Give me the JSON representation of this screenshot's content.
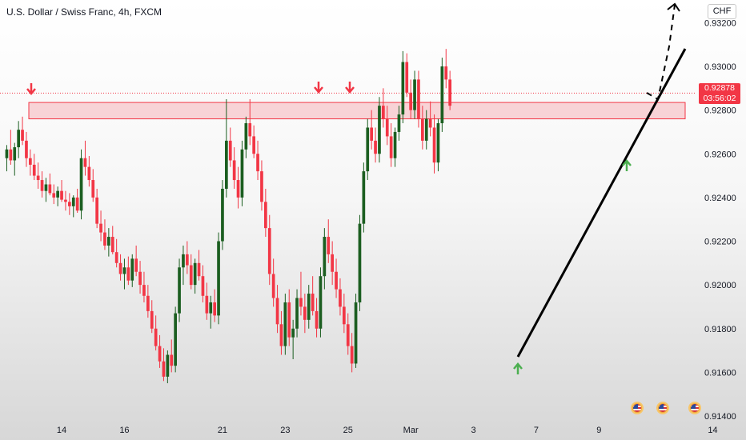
{
  "header": {
    "title": "U.S. Dollar / Swiss Franc, 4h, FXCM",
    "currency": "CHF"
  },
  "last_price": {
    "value": "0.92878",
    "countdown": "03:56:02",
    "color": "#f23645"
  },
  "colors": {
    "up": "#1b5e20",
    "down": "#f23645",
    "zone_fill": "#f2364533",
    "trendline": "#000000"
  },
  "chart_data": {
    "type": "candlestick",
    "xlabel": "",
    "ylabel": "",
    "ylim": [
      0.914,
      0.9326
    ],
    "y_ticks": [
      "0.93200",
      "0.93000",
      "0.92800",
      "0.92600",
      "0.92400",
      "0.92200",
      "0.92000",
      "0.91800",
      "0.91600",
      "0.91400"
    ],
    "y_tick_values": [
      0.932,
      0.93,
      0.928,
      0.926,
      0.924,
      0.922,
      0.92,
      0.918,
      0.916,
      0.914
    ],
    "x_ticks": [
      "14",
      "16",
      "21",
      "23",
      "25",
      "Mar",
      "3",
      "7",
      "9",
      "14"
    ],
    "x_tick_bars": [
      14,
      30,
      55,
      71,
      87,
      103,
      119,
      135,
      151,
      180
    ],
    "candles": [
      [
        0.9258,
        0.9264,
        0.9252,
        0.9262
      ],
      [
        0.9262,
        0.9271,
        0.9255,
        0.9257
      ],
      [
        0.9257,
        0.9265,
        0.925,
        0.9263
      ],
      [
        0.9263,
        0.9275,
        0.9258,
        0.9271
      ],
      [
        0.9271,
        0.9277,
        0.9264,
        0.9266
      ],
      [
        0.9266,
        0.927,
        0.9254,
        0.9258
      ],
      [
        0.9258,
        0.9262,
        0.925,
        0.9255
      ],
      [
        0.9255,
        0.926,
        0.9248,
        0.925
      ],
      [
        0.925,
        0.9256,
        0.9244,
        0.9248
      ],
      [
        0.9248,
        0.9252,
        0.924,
        0.9243
      ],
      [
        0.9243,
        0.9249,
        0.9238,
        0.9246
      ],
      [
        0.9246,
        0.9251,
        0.9241,
        0.9242
      ],
      [
        0.9242,
        0.9246,
        0.9237,
        0.924
      ],
      [
        0.924,
        0.9245,
        0.9236,
        0.9243
      ],
      [
        0.9243,
        0.9248,
        0.9238,
        0.9239
      ],
      [
        0.9239,
        0.9243,
        0.9234,
        0.9238
      ],
      [
        0.9238,
        0.9242,
        0.9232,
        0.9236
      ],
      [
        0.9236,
        0.9241,
        0.9231,
        0.924
      ],
      [
        0.924,
        0.9244,
        0.9233,
        0.9234
      ],
      [
        0.9234,
        0.9262,
        0.923,
        0.9258
      ],
      [
        0.9258,
        0.9266,
        0.925,
        0.9254
      ],
      [
        0.9254,
        0.9259,
        0.9245,
        0.9248
      ],
      [
        0.9248,
        0.9253,
        0.9238,
        0.924
      ],
      [
        0.924,
        0.9244,
        0.9226,
        0.9228
      ],
      [
        0.9228,
        0.9234,
        0.922,
        0.9224
      ],
      [
        0.9224,
        0.923,
        0.9216,
        0.9218
      ],
      [
        0.9218,
        0.9226,
        0.9213,
        0.9222
      ],
      [
        0.9222,
        0.9227,
        0.9214,
        0.9215
      ],
      [
        0.9215,
        0.9221,
        0.9208,
        0.921
      ],
      [
        0.921,
        0.9214,
        0.9202,
        0.9205
      ],
      [
        0.9205,
        0.9212,
        0.9198,
        0.9208
      ],
      [
        0.9208,
        0.9213,
        0.92,
        0.9202
      ],
      [
        0.9202,
        0.9214,
        0.9199,
        0.9212
      ],
      [
        0.9212,
        0.9218,
        0.9204,
        0.9206
      ],
      [
        0.9206,
        0.9211,
        0.9196,
        0.92
      ],
      [
        0.92,
        0.9206,
        0.9192,
        0.9195
      ],
      [
        0.9195,
        0.92,
        0.9185,
        0.9188
      ],
      [
        0.9188,
        0.9193,
        0.9178,
        0.918
      ],
      [
        0.918,
        0.9186,
        0.917,
        0.9172
      ],
      [
        0.9172,
        0.9177,
        0.9162,
        0.9165
      ],
      [
        0.9165,
        0.9171,
        0.9156,
        0.9158
      ],
      [
        0.9158,
        0.917,
        0.9155,
        0.9168
      ],
      [
        0.9168,
        0.9175,
        0.916,
        0.9163
      ],
      [
        0.9163,
        0.919,
        0.916,
        0.9187
      ],
      [
        0.9187,
        0.9212,
        0.9183,
        0.9208
      ],
      [
        0.9208,
        0.9218,
        0.92,
        0.9214
      ],
      [
        0.9214,
        0.922,
        0.9205,
        0.9209
      ],
      [
        0.9209,
        0.9214,
        0.9198,
        0.92
      ],
      [
        0.92,
        0.9212,
        0.9196,
        0.921
      ],
      [
        0.921,
        0.9216,
        0.9202,
        0.9204
      ],
      [
        0.9204,
        0.9209,
        0.9192,
        0.9195
      ],
      [
        0.9195,
        0.9201,
        0.9184,
        0.9187
      ],
      [
        0.9187,
        0.9195,
        0.918,
        0.9192
      ],
      [
        0.9192,
        0.9198,
        0.9183,
        0.9186
      ],
      [
        0.9186,
        0.9224,
        0.9182,
        0.922
      ],
      [
        0.922,
        0.9248,
        0.9216,
        0.9244
      ],
      [
        0.9244,
        0.9285,
        0.924,
        0.9266
      ],
      [
        0.9266,
        0.9272,
        0.9254,
        0.9257
      ],
      [
        0.9257,
        0.9263,
        0.9244,
        0.9248
      ],
      [
        0.9248,
        0.9254,
        0.9235,
        0.924
      ],
      [
        0.924,
        0.9266,
        0.9236,
        0.9262
      ],
      [
        0.9262,
        0.9277,
        0.9258,
        0.9274
      ],
      [
        0.9274,
        0.9285,
        0.9264,
        0.9268
      ],
      [
        0.9268,
        0.9273,
        0.9258,
        0.926
      ],
      [
        0.926,
        0.9266,
        0.9248,
        0.9252
      ],
      [
        0.9252,
        0.9257,
        0.9234,
        0.9238
      ],
      [
        0.9238,
        0.9244,
        0.9222,
        0.9226
      ],
      [
        0.9226,
        0.9232,
        0.92,
        0.9205
      ],
      [
        0.9205,
        0.9212,
        0.919,
        0.9194
      ],
      [
        0.9194,
        0.92,
        0.9178,
        0.9182
      ],
      [
        0.9182,
        0.9188,
        0.9168,
        0.9172
      ],
      [
        0.9172,
        0.9196,
        0.9168,
        0.9192
      ],
      [
        0.9192,
        0.9198,
        0.9172,
        0.9176
      ],
      [
        0.9176,
        0.9184,
        0.9166,
        0.918
      ],
      [
        0.918,
        0.9198,
        0.9176,
        0.9194
      ],
      [
        0.9194,
        0.9206,
        0.9186,
        0.919
      ],
      [
        0.919,
        0.9196,
        0.9178,
        0.9184
      ],
      [
        0.9184,
        0.92,
        0.918,
        0.9196
      ],
      [
        0.9196,
        0.9204,
        0.9186,
        0.9188
      ],
      [
        0.9188,
        0.9194,
        0.9176,
        0.918
      ],
      [
        0.918,
        0.9208,
        0.9176,
        0.9204
      ],
      [
        0.9204,
        0.9226,
        0.9198,
        0.9222
      ],
      [
        0.9222,
        0.923,
        0.921,
        0.9214
      ],
      [
        0.9214,
        0.922,
        0.92,
        0.9206
      ],
      [
        0.9206,
        0.9212,
        0.9194,
        0.9198
      ],
      [
        0.9198,
        0.9203,
        0.9186,
        0.919
      ],
      [
        0.919,
        0.9196,
        0.9178,
        0.9182
      ],
      [
        0.9182,
        0.9187,
        0.9168,
        0.9172
      ],
      [
        0.9172,
        0.9178,
        0.916,
        0.9164
      ],
      [
        0.9164,
        0.9196,
        0.9162,
        0.9192
      ],
      [
        0.9192,
        0.9232,
        0.9188,
        0.9228
      ],
      [
        0.9228,
        0.9256,
        0.9224,
        0.9252
      ],
      [
        0.9252,
        0.9276,
        0.9248,
        0.9272
      ],
      [
        0.9272,
        0.928,
        0.9262,
        0.9266
      ],
      [
        0.9266,
        0.9272,
        0.9256,
        0.926
      ],
      [
        0.926,
        0.9286,
        0.9256,
        0.9282
      ],
      [
        0.9282,
        0.929,
        0.9272,
        0.9276
      ],
      [
        0.9276,
        0.9282,
        0.9264,
        0.9268
      ],
      [
        0.9268,
        0.9274,
        0.9254,
        0.9258
      ],
      [
        0.9258,
        0.9272,
        0.9254,
        0.927
      ],
      [
        0.927,
        0.9282,
        0.9266,
        0.9278
      ],
      [
        0.9278,
        0.9307,
        0.9274,
        0.9302
      ],
      [
        0.9302,
        0.9306,
        0.9286,
        0.9288
      ],
      [
        0.9288,
        0.9294,
        0.9276,
        0.928
      ],
      [
        0.928,
        0.9298,
        0.9276,
        0.9294
      ],
      [
        0.9294,
        0.9298,
        0.9272,
        0.9276
      ],
      [
        0.9276,
        0.9282,
        0.9262,
        0.9266
      ],
      [
        0.9266,
        0.928,
        0.9262,
        0.9276
      ],
      [
        0.9276,
        0.9284,
        0.9268,
        0.9272
      ],
      [
        0.9272,
        0.9278,
        0.9251,
        0.9256
      ],
      [
        0.9256,
        0.9276,
        0.9252,
        0.9274
      ],
      [
        0.9274,
        0.9304,
        0.927,
        0.93
      ],
      [
        0.93,
        0.9308,
        0.929,
        0.9294
      ],
      [
        0.9294,
        0.9298,
        0.928,
        0.9282
      ]
    ],
    "resistance_zone": [
      0.9276,
      0.92835
    ],
    "resistance_line": 0.92878,
    "trendline": [
      [
        0.9162,
        0
      ],
      [
        0.9303,
        1
      ]
    ],
    "grid": false,
    "legend": "none"
  }
}
